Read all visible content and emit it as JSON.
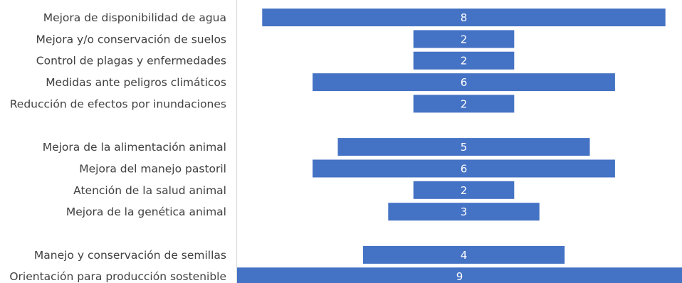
{
  "chart_data": {
    "type": "bar",
    "orientation": "horizontal",
    "layout": "centered-funnel",
    "bar_color": "#4472c4",
    "label_color": "#ffffff",
    "category_text_color": "#404040",
    "title": "",
    "xlabel": "",
    "ylabel": "",
    "xlim": [
      0,
      9
    ],
    "grid": false,
    "legend": "none",
    "groups": [
      {
        "categories": [
          "Mejora de disponibilidad de agua",
          "Mejora y/o conservación de suelos",
          "Control de plagas y enfermedades",
          "Medidas ante peligros climáticos",
          "Reducción de efectos por inundaciones"
        ],
        "values": [
          8,
          2,
          2,
          6,
          2
        ]
      },
      {
        "categories": [
          "Mejora de la alimentación animal",
          "Mejora del manejo pastoril",
          "Atención de la salud animal",
          "Mejora de la genética animal"
        ],
        "values": [
          5,
          6,
          2,
          3
        ]
      },
      {
        "categories": [
          "Manejo y conservación de semillas",
          "Orientación para producción sostenible"
        ],
        "values": [
          4,
          9
        ]
      }
    ]
  }
}
